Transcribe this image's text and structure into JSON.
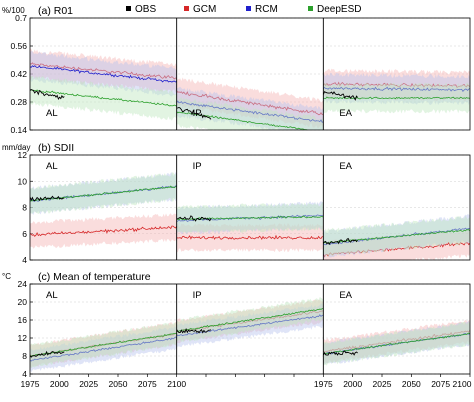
{
  "legend": [
    {
      "name": "OBS",
      "color": "#000000"
    },
    {
      "name": "GCM",
      "color": "#d62728"
    },
    {
      "name": "RCM",
      "color": "#1f1fcc"
    },
    {
      "name": "DeepESD",
      "color": "#2ca02c"
    }
  ],
  "x_ticks": [
    "1975",
    "2000",
    "2025",
    "2050",
    "2075",
    "2100"
  ],
  "x_ticks_last_panel": [
    "1975",
    "2000",
    "2025",
    "2050",
    "2075",
    "2100"
  ],
  "middle_x_tick": "1975",
  "chart_data": [
    {
      "type": "line",
      "title": "(a) R01",
      "ylabel": "%/100",
      "ylim": [
        0.14,
        0.7
      ],
      "yticks": [
        "0.14",
        "0.28",
        "0.42",
        "0.56",
        "0.7"
      ],
      "ytick_values": [
        0.14,
        0.28,
        0.42,
        0.56,
        0.7
      ],
      "regions": [
        {
          "label": "AL",
          "obs": [
            0.34,
            0.3
          ],
          "gcm": [
            0.47,
            0.4
          ],
          "rcm": [
            0.46,
            0.38
          ],
          "deepesd": [
            0.34,
            0.26
          ]
        },
        {
          "label": "IP",
          "obs": [
            0.25,
            0.2
          ],
          "gcm": [
            0.33,
            0.22
          ],
          "rcm": [
            0.28,
            0.18
          ],
          "deepesd": [
            0.23,
            0.13
          ]
        },
        {
          "label": "EA",
          "obs": [
            0.33,
            0.3
          ],
          "gcm": [
            0.37,
            0.36
          ],
          "rcm": [
            0.35,
            0.34
          ],
          "deepesd": [
            0.3,
            0.3
          ]
        }
      ]
    },
    {
      "type": "line",
      "title": "(b) SDII",
      "ylabel": "mm/day",
      "ylim": [
        4,
        12
      ],
      "yticks": [
        "4",
        "6",
        "8",
        "10",
        "12"
      ],
      "ytick_values": [
        4,
        6,
        8,
        10,
        12
      ],
      "regions": [
        {
          "label": "AL",
          "obs": [
            8.7,
            8.7
          ],
          "gcm": [
            5.9,
            6.5
          ],
          "rcm": [
            8.5,
            9.6
          ],
          "deepesd": [
            8.5,
            9.6
          ]
        },
        {
          "label": "IP",
          "obs": [
            7.2,
            7.1
          ],
          "gcm": [
            5.7,
            5.7
          ],
          "rcm": [
            7.0,
            7.4
          ],
          "deepesd": [
            7.1,
            7.3
          ]
        },
        {
          "label": "EA",
          "obs": [
            5.3,
            5.5
          ],
          "gcm": [
            4.4,
            5.3
          ],
          "rcm": [
            5.2,
            6.4
          ],
          "deepesd": [
            5.3,
            6.3
          ]
        }
      ]
    },
    {
      "type": "line",
      "title": "(c) Mean of temperature",
      "ylabel": "°C",
      "ylim": [
        4,
        24
      ],
      "yticks": [
        "4",
        "8",
        "12",
        "16",
        "20",
        "24"
      ],
      "ytick_values": [
        4,
        8,
        12,
        16,
        20,
        24
      ],
      "regions": [
        {
          "label": "AL",
          "obs": [
            8.0,
            9.0
          ],
          "gcm": [
            8.0,
            13.0
          ],
          "rcm": [
            7.0,
            12.0
          ],
          "deepesd": [
            8.0,
            13.0
          ]
        },
        {
          "label": "IP",
          "obs": [
            13.5,
            13.5
          ],
          "gcm": [
            13.5,
            18.0
          ],
          "rcm": [
            12.5,
            17.0
          ],
          "deepesd": [
            13.5,
            18.5
          ]
        },
        {
          "label": "EA",
          "obs": [
            8.5,
            8.8
          ],
          "gcm": [
            9.0,
            13.5
          ],
          "rcm": [
            8.5,
            13.0
          ],
          "deepesd": [
            8.5,
            13.0
          ]
        }
      ]
    }
  ]
}
